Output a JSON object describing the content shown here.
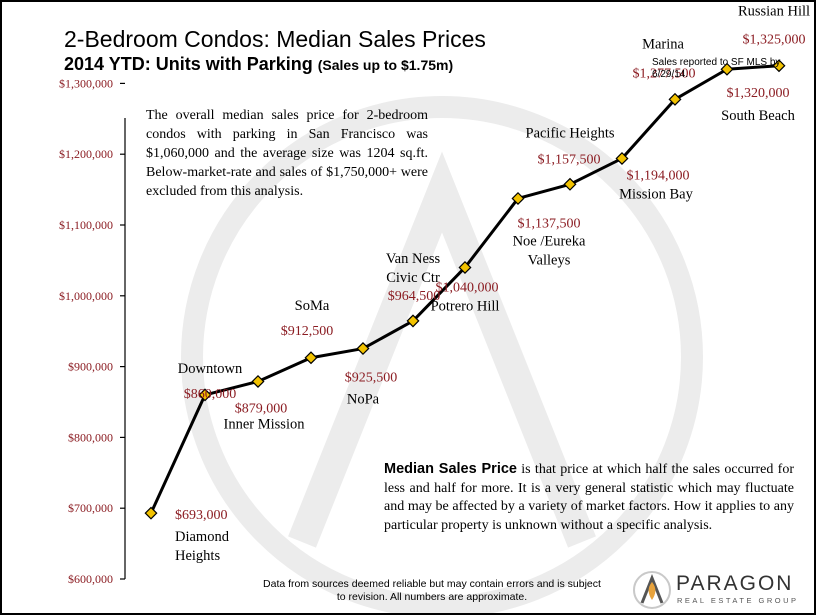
{
  "header": {
    "title_line1": "2-Bedroom Condos: Median Sales Prices",
    "title_line2_main": "2014 YTD: Units with Parking",
    "title_line2_paren": "(Sales up to $1.75m)",
    "report_note": "Sales reported to SF MLS by 6/29/14."
  },
  "summary_text": "The overall median sales price for 2-bedroom condos with parking in San Francisco was $1,060,000 and the average size was 1204 sq.ft. Below-market-rate and sales of $1,750,000+ were excluded from this analysis.",
  "definition": {
    "term": "Median Sales Price",
    "text": " is that price at which half the sales occurred for less and half for more. It is a very general statistic which  may fluctuate and may be affected by a variety of market factors. How it applies to any particular property is unknown without a specific analysis."
  },
  "footnote": "Data from sources deemed reliable but may contain errors and is subject to revision.  All numbers are approximate.",
  "logo": {
    "name": "PARAGON",
    "tagline": "REAL ESTATE GROUP",
    "accent_color": "#e8a33d"
  },
  "chart_data": {
    "type": "line",
    "ylim": [
      600000,
      1350000
    ],
    "yticks": [
      600000,
      700000,
      800000,
      900000,
      1000000,
      1100000,
      1200000,
      1300000
    ],
    "ytick_labels": [
      "$600,000",
      "$700,000",
      "$800,000",
      "$900,000",
      "$1,000,000",
      "$1,100,000",
      "$1,200,000",
      "$1,300,000"
    ],
    "line_color": "#000000",
    "marker_color": "#f2c200",
    "value_color": "#8b1c22",
    "points": [
      {
        "name": [
          "Diamond",
          "Heights"
        ],
        "value": 693000,
        "value_label": "$693,000"
      },
      {
        "name": [
          "Downtown"
        ],
        "value": 860000,
        "value_label": "$860,000"
      },
      {
        "name": [
          "Inner Mission"
        ],
        "value": 879000,
        "value_label": "$879,000"
      },
      {
        "name": [
          "SoMa"
        ],
        "value": 912500,
        "value_label": "$912,500"
      },
      {
        "name": [
          "NoPa"
        ],
        "value": 925500,
        "value_label": "$925,500"
      },
      {
        "name": [
          "Van Ness",
          "Civic Ctr"
        ],
        "value": 964500,
        "value_label": "$964,500"
      },
      {
        "name": [
          "Potrero Hill"
        ],
        "value": 1040000,
        "value_label": "$1,040,000"
      },
      {
        "name": [
          "Noe /Eureka",
          "Valleys"
        ],
        "value": 1137500,
        "value_label": "$1,137,500"
      },
      {
        "name": [
          "Pacific Heights"
        ],
        "value": 1157500,
        "value_label": "$1,157,500"
      },
      {
        "name": [
          "Mission Bay"
        ],
        "value": 1194000,
        "value_label": "$1,194,000"
      },
      {
        "name": [
          "Marina"
        ],
        "value": 1277500,
        "value_label": "$1,277,500"
      },
      {
        "name": [
          "South Beach"
        ],
        "value": 1320000,
        "value_label": "$1,320,000"
      },
      {
        "name": [
          "Russian Hill"
        ],
        "value": 1325000,
        "value_label": "$1,325,000"
      }
    ]
  }
}
